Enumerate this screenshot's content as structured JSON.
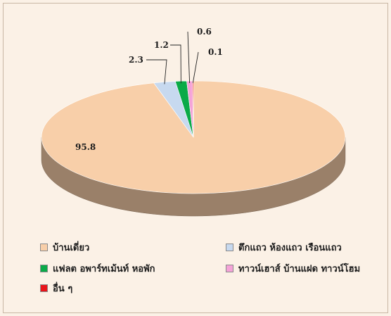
{
  "chart_data": {
    "type": "pie",
    "style": "3d",
    "labels": [
      "บ้านเดี่ยว",
      "ตึกแถว ห้องแถว เรือนแถว",
      "แฟลต อพาร์ทเม้นท์ หอพัก",
      "ทาวน์เฮาส์ บ้านแฝด ทาวน์โฮม",
      "อื่น ๆ"
    ],
    "values": [
      95.8,
      2.3,
      1.2,
      0.6,
      0.1
    ],
    "value_labels": [
      "95.8",
      "2.3",
      "1.2",
      "0.6",
      "0.1"
    ],
    "colors": [
      "#f8cfa9",
      "#c7d9ef",
      "#0aaa48",
      "#f5a3d8",
      "#e8141a"
    ],
    "title": "",
    "legend_position": "bottom"
  }
}
